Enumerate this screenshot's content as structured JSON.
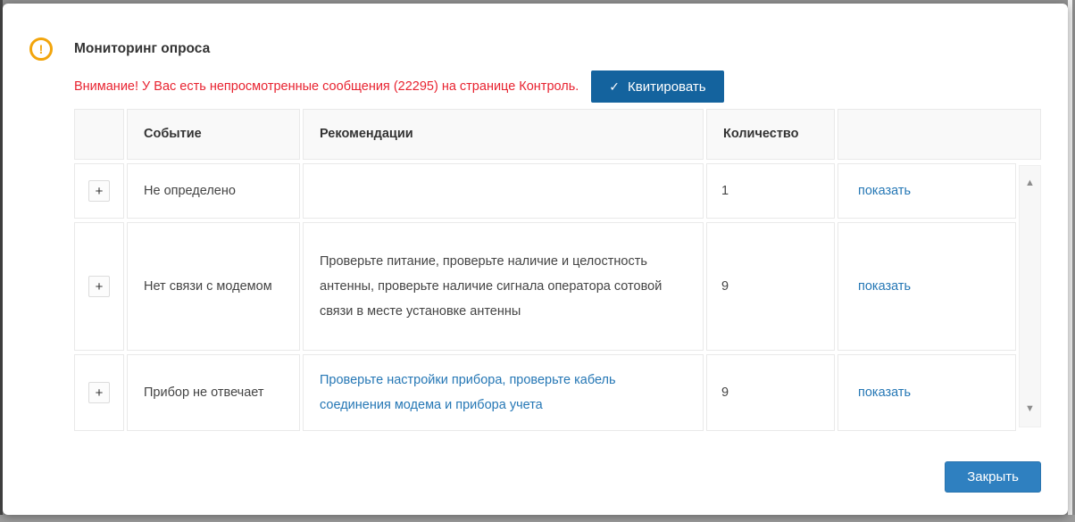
{
  "dialog": {
    "title": "Мониторинг опроса",
    "warning_text": "Внимание! У Вас есть непросмотренные сообщения (22295) на странице Контроль.",
    "acknowledge_label": "Квитировать",
    "close_label": "Закрыть"
  },
  "icons": {
    "alert": "!",
    "check": "✓",
    "expand": "+",
    "scroll_up": "▲",
    "scroll_down": "▼"
  },
  "table": {
    "headers": {
      "event": "Событие",
      "recommendations": "Рекомендации",
      "count": "Количество"
    },
    "rows": [
      {
        "event": "Не определено",
        "recommendations": "",
        "count": "1",
        "action": "показать"
      },
      {
        "event": "Нет связи с модемом",
        "recommendations": "Проверьте питание, проверьте наличие и целостность антенны, проверьте наличие сигнала оператора сотовой связи в месте установке антенны",
        "count": "9",
        "action": "показать"
      },
      {
        "event": "Прибор не отвечает",
        "recommendations": "Проверьте настройки прибора, проверьте кабель соединения модема и прибора учета",
        "count": "9",
        "action": "показать"
      }
    ]
  },
  "colors": {
    "accent_dark_blue": "#14639e",
    "accent_blue": "#2f80c0",
    "link_blue": "#2577b5",
    "warning_red": "#e82330",
    "alert_orange": "#f2a50c",
    "header_bg": "#f9f9f9"
  }
}
